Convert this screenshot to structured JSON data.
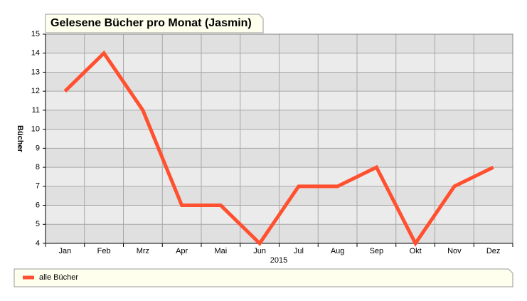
{
  "chart_data": {
    "type": "line",
    "title": "Gelesene Bücher pro Monat (Jasmin)",
    "x_label": "2015",
    "y_label": "Bücher",
    "categories": [
      "Jan",
      "Feb",
      "Mrz",
      "Apr",
      "Mai",
      "Jun",
      "Jul",
      "Aug",
      "Sep",
      "Okt",
      "Nov",
      "Dez"
    ],
    "series": [
      {
        "name": "alle Bücher",
        "color": "#ff5030",
        "values": [
          12,
          14,
          11,
          6,
          6,
          4,
          7,
          7,
          8,
          4,
          7,
          8
        ]
      }
    ],
    "ylim": [
      4,
      15
    ],
    "yticks": [
      4,
      5,
      6,
      7,
      8,
      9,
      10,
      11,
      12,
      13,
      14,
      15
    ],
    "grid": true,
    "legend": "bottom"
  }
}
